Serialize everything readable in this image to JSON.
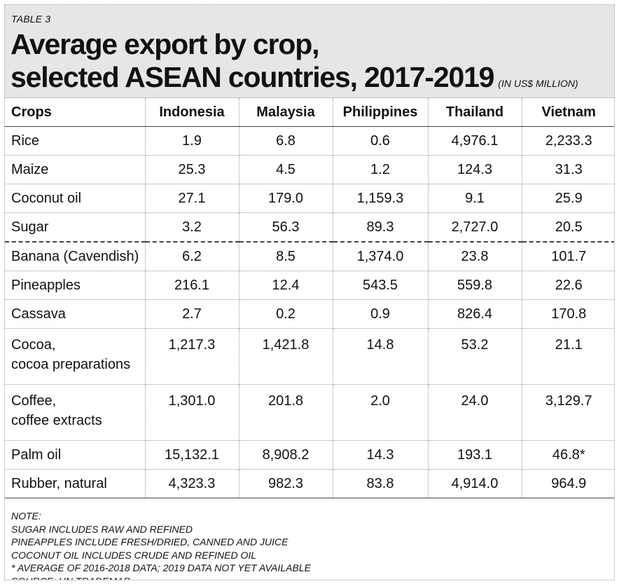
{
  "header": {
    "tag": "TABLE 3",
    "title_line1": "Average export by crop,",
    "title_line2": "selected ASEAN countries, 2017-2019",
    "unit": "(IN US$ MILLION)"
  },
  "chart_data": {
    "type": "table",
    "columns": [
      "Crops",
      "Indonesia",
      "Malaysia",
      "Philippines",
      "Thailand",
      "Vietnam"
    ],
    "rows": [
      {
        "crop": [
          "Rice"
        ],
        "values": [
          "1.9",
          "6.8",
          "0.6",
          "4,976.1",
          "2,233.3"
        ]
      },
      {
        "crop": [
          "Maize"
        ],
        "values": [
          "25.3",
          "4.5",
          "1.2",
          "124.3",
          "31.3"
        ]
      },
      {
        "crop": [
          "Coconut oil"
        ],
        "values": [
          "27.1",
          "179.0",
          "1,159.3",
          "9.1",
          "25.9"
        ]
      },
      {
        "crop": [
          "Sugar"
        ],
        "values": [
          "3.2",
          "56.3",
          "89.3",
          "2,727.0",
          "20.5"
        ]
      },
      {
        "crop": [
          "Banana (Cavendish)"
        ],
        "values": [
          "6.2",
          "8.5",
          "1,374.0",
          "23.8",
          "101.7"
        ]
      },
      {
        "crop": [
          "Pineapples"
        ],
        "values": [
          "216.1",
          "12.4",
          "543.5",
          "559.8",
          "22.6"
        ]
      },
      {
        "crop": [
          "Cassava"
        ],
        "values": [
          "2.7",
          "0.2",
          "0.9",
          "826.4",
          "170.8"
        ]
      },
      {
        "crop": [
          "Cocoa,",
          "cocoa preparations"
        ],
        "values": [
          "1,217.3",
          "1,421.8",
          "14.8",
          "53.2",
          "21.1"
        ]
      },
      {
        "crop": [
          "Coffee,",
          "coffee extracts"
        ],
        "values": [
          "1,301.0",
          "201.8",
          "2.0",
          "24.0",
          "3,129.7"
        ]
      },
      {
        "crop": [
          "Palm oil"
        ],
        "values": [
          "15,132.1",
          "8,908.2",
          "14.3",
          "193.1",
          "46.8*"
        ]
      },
      {
        "crop": [
          "Rubber, natural"
        ],
        "values": [
          "4,323.3",
          "982.3",
          "83.8",
          "4,914.0",
          "964.9"
        ]
      }
    ]
  },
  "notes": [
    "NOTE:",
    "SUGAR INCLUDES RAW AND REFINED",
    "PINEAPPLES INCLUDE FRESH/DRIED, CANNED AND JUICE",
    "COCONUT OIL INCLUDES CRUDE AND REFINED OIL",
    "* AVERAGE OF 2016-2018 DATA; 2019 DATA NOT YET AVAILABLE",
    "SOURCE:  UN TRADEMAP"
  ]
}
